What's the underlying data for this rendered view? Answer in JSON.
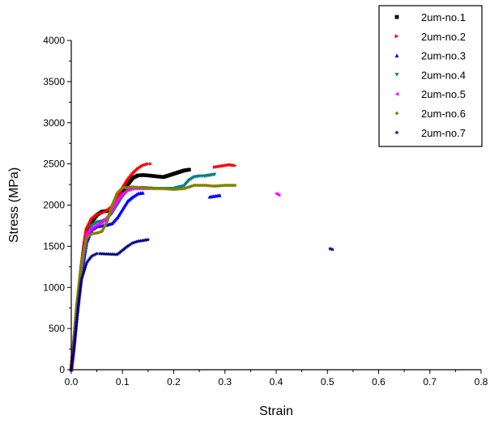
{
  "chart_data": {
    "type": "scatter",
    "xlabel": "Strain",
    "ylabel": "Stress (MPa)",
    "xlim": [
      0,
      0.8
    ],
    "ylim": [
      0,
      4000
    ],
    "xticks": [
      "0.0",
      "0.1",
      "0.2",
      "0.3",
      "0.4",
      "0.5",
      "0.6",
      "0.7",
      "0.8"
    ],
    "yticks": [
      "0",
      "500",
      "1000",
      "1500",
      "2000",
      "2500",
      "3000",
      "3500",
      "4000"
    ],
    "grid": false,
    "legend_position": "top-right",
    "series": [
      {
        "name": "2um-no.1",
        "color": "#000000",
        "marker": "square",
        "points": [
          [
            0,
            0
          ],
          [
            0.005,
            300
          ],
          [
            0.01,
            650
          ],
          [
            0.015,
            950
          ],
          [
            0.02,
            1250
          ],
          [
            0.025,
            1500
          ],
          [
            0.03,
            1700
          ],
          [
            0.04,
            1800
          ],
          [
            0.05,
            1880
          ],
          [
            0.06,
            1920
          ],
          [
            0.07,
            1930
          ],
          [
            0.08,
            1950
          ],
          [
            0.09,
            2050
          ],
          [
            0.1,
            2150
          ],
          [
            0.11,
            2250
          ],
          [
            0.12,
            2330
          ],
          [
            0.13,
            2360
          ],
          [
            0.14,
            2365
          ],
          [
            0.15,
            2360
          ],
          [
            0.18,
            2340
          ],
          [
            0.2,
            2380
          ],
          [
            0.22,
            2420
          ],
          [
            0.23,
            2430
          ]
        ]
      },
      {
        "name": "2um-no.2",
        "color": "#ff0000",
        "marker": "triangle-right",
        "points": [
          [
            0,
            0
          ],
          [
            0.005,
            300
          ],
          [
            0.01,
            650
          ],
          [
            0.02,
            1250
          ],
          [
            0.03,
            1700
          ],
          [
            0.04,
            1830
          ],
          [
            0.05,
            1880
          ],
          [
            0.06,
            1900
          ],
          [
            0.07,
            1930
          ],
          [
            0.08,
            1980
          ],
          [
            0.09,
            2080
          ],
          [
            0.1,
            2200
          ],
          [
            0.11,
            2300
          ],
          [
            0.12,
            2380
          ],
          [
            0.13,
            2440
          ],
          [
            0.14,
            2480
          ],
          [
            0.15,
            2500
          ],
          [
            0.155,
            2500
          ],
          [
            0.28,
            2460
          ],
          [
            0.29,
            2470
          ],
          [
            0.3,
            2480
          ],
          [
            0.31,
            2490
          ],
          [
            0.32,
            2480
          ]
        ]
      },
      {
        "name": "2um-no.3",
        "color": "#0000ff",
        "marker": "triangle-up",
        "points": [
          [
            0,
            0
          ],
          [
            0.005,
            250
          ],
          [
            0.01,
            600
          ],
          [
            0.02,
            1150
          ],
          [
            0.03,
            1550
          ],
          [
            0.04,
            1700
          ],
          [
            0.05,
            1740
          ],
          [
            0.06,
            1750
          ],
          [
            0.07,
            1760
          ],
          [
            0.08,
            1780
          ],
          [
            0.09,
            1850
          ],
          [
            0.1,
            1950
          ],
          [
            0.11,
            2050
          ],
          [
            0.12,
            2100
          ],
          [
            0.13,
            2140
          ],
          [
            0.14,
            2150
          ],
          [
            0.27,
            2100
          ],
          [
            0.28,
            2110
          ],
          [
            0.29,
            2120
          ]
        ]
      },
      {
        "name": "2um-no.4",
        "color": "#008080",
        "marker": "triangle-down",
        "points": [
          [
            0,
            0
          ],
          [
            0.005,
            300
          ],
          [
            0.01,
            650
          ],
          [
            0.02,
            1200
          ],
          [
            0.03,
            1600
          ],
          [
            0.04,
            1750
          ],
          [
            0.05,
            1790
          ],
          [
            0.06,
            1800
          ],
          [
            0.07,
            1830
          ],
          [
            0.08,
            1900
          ],
          [
            0.09,
            2000
          ],
          [
            0.1,
            2100
          ],
          [
            0.11,
            2180
          ],
          [
            0.12,
            2200
          ],
          [
            0.14,
            2210
          ],
          [
            0.16,
            2200
          ],
          [
            0.18,
            2200
          ],
          [
            0.2,
            2200
          ],
          [
            0.22,
            2230
          ],
          [
            0.23,
            2300
          ],
          [
            0.24,
            2340
          ],
          [
            0.25,
            2350
          ],
          [
            0.26,
            2350
          ],
          [
            0.27,
            2360
          ],
          [
            0.28,
            2370
          ]
        ]
      },
      {
        "name": "2um-no.5",
        "color": "#ff00ff",
        "marker": "triangle-left",
        "points": [
          [
            0,
            0
          ],
          [
            0.005,
            300
          ],
          [
            0.01,
            700
          ],
          [
            0.02,
            1300
          ],
          [
            0.03,
            1650
          ],
          [
            0.04,
            1720
          ],
          [
            0.05,
            1760
          ],
          [
            0.06,
            1790
          ],
          [
            0.07,
            1850
          ],
          [
            0.08,
            1950
          ],
          [
            0.09,
            2060
          ],
          [
            0.1,
            2140
          ],
          [
            0.11,
            2180
          ],
          [
            0.12,
            2200
          ],
          [
            0.13,
            2200
          ],
          [
            0.14,
            2200
          ],
          [
            0.15,
            2200
          ],
          [
            0.4,
            2140
          ],
          [
            0.405,
            2120
          ]
        ]
      },
      {
        "name": "2um-no.6",
        "color": "#808000",
        "marker": "diamond",
        "points": [
          [
            0,
            0
          ],
          [
            0.005,
            350
          ],
          [
            0.01,
            750
          ],
          [
            0.02,
            1300
          ],
          [
            0.03,
            1600
          ],
          [
            0.04,
            1650
          ],
          [
            0.05,
            1660
          ],
          [
            0.06,
            1680
          ],
          [
            0.07,
            1800
          ],
          [
            0.08,
            2000
          ],
          [
            0.09,
            2150
          ],
          [
            0.1,
            2210
          ],
          [
            0.12,
            2220
          ],
          [
            0.14,
            2210
          ],
          [
            0.16,
            2200
          ],
          [
            0.18,
            2200
          ],
          [
            0.2,
            2190
          ],
          [
            0.22,
            2200
          ],
          [
            0.24,
            2240
          ],
          [
            0.26,
            2240
          ],
          [
            0.28,
            2230
          ],
          [
            0.3,
            2240
          ],
          [
            0.32,
            2240
          ]
        ]
      },
      {
        "name": "2um-no.7",
        "color": "#000080",
        "marker": "star",
        "points": [
          [
            0,
            0
          ],
          [
            0.005,
            250
          ],
          [
            0.01,
            550
          ],
          [
            0.015,
            850
          ],
          [
            0.02,
            1100
          ],
          [
            0.03,
            1300
          ],
          [
            0.04,
            1380
          ],
          [
            0.05,
            1410
          ],
          [
            0.055,
            1410
          ],
          [
            0.09,
            1400
          ],
          [
            0.1,
            1450
          ],
          [
            0.11,
            1500
          ],
          [
            0.12,
            1540
          ],
          [
            0.13,
            1560
          ],
          [
            0.14,
            1570
          ],
          [
            0.15,
            1580
          ],
          [
            0.505,
            1470
          ],
          [
            0.51,
            1460
          ]
        ]
      }
    ]
  }
}
